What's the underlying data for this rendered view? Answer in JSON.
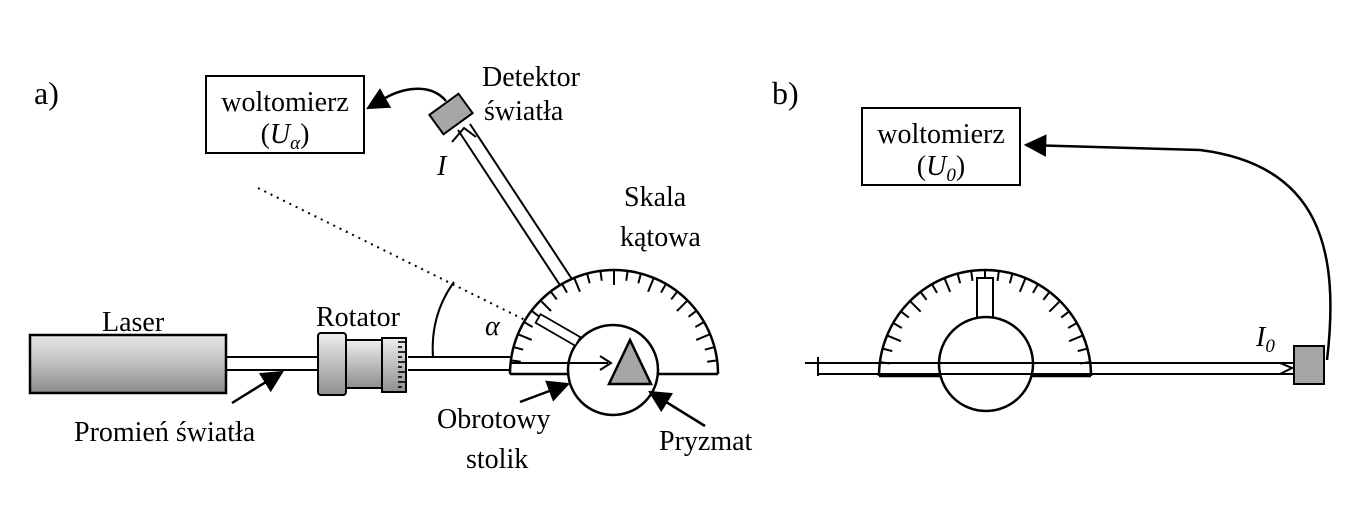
{
  "panel_a": {
    "label": "a)",
    "voltmeter": {
      "title": "woltomierz",
      "reading_open": "(",
      "reading_symbol": "U",
      "reading_subscript": "α",
      "reading_close": ")"
    },
    "detector": {
      "line1": "Detektor",
      "line2": "światła"
    },
    "intensity_symbol": "I",
    "scale": {
      "line1": "Skala",
      "line2": "kątowa"
    },
    "angle_symbol": "α",
    "laser": "Laser",
    "rotator": "Rotator",
    "beam": "Promień światła",
    "stage": {
      "line1": "Obrotowy",
      "line2": "stolik"
    },
    "prism": "Pryzmat"
  },
  "panel_b": {
    "label": "b)",
    "voltmeter": {
      "title": "woltomierz",
      "reading_open": "(",
      "reading_symbol": "U",
      "reading_subscript": "0",
      "reading_close": ")"
    },
    "intensity_symbol": "I",
    "intensity_subscript": "0"
  },
  "colors": {
    "stroke": "#000000",
    "laser_fill": "#c8c8c8",
    "prism_fill": "#a6a6a6",
    "detector_fill": "#a6a6a6"
  }
}
